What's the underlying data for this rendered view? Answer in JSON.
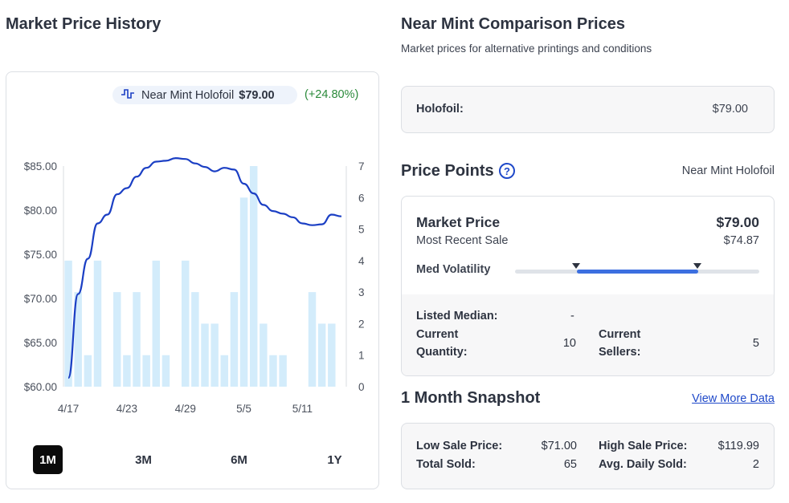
{
  "market_price_history": {
    "title": "Market Price History",
    "legend": {
      "name": "Near Mint Holofoil",
      "price": "$79.00",
      "change": "(+24.80%)"
    },
    "ranges": [
      "1M",
      "3M",
      "6M",
      "1Y"
    ],
    "active_range": "1M"
  },
  "chart_data": {
    "type": "bar+line",
    "categories": [
      "4/17",
      "4/18",
      "4/19",
      "4/20",
      "4/21",
      "4/22",
      "4/23",
      "4/24",
      "4/25",
      "4/26",
      "4/27",
      "4/28",
      "4/29",
      "4/30",
      "5/1",
      "5/2",
      "5/3",
      "5/4",
      "5/5",
      "5/6",
      "5/7",
      "5/8",
      "5/9",
      "5/10",
      "5/11",
      "5/12",
      "5/13",
      "5/14",
      "5/15"
    ],
    "x_tick_labels": [
      "4/17",
      "4/23",
      "4/29",
      "5/5",
      "5/11"
    ],
    "series": [
      {
        "name": "Near Mint Holofoil",
        "axis": "left",
        "kind": "line",
        "values": [
          61.0,
          70.5,
          74.5,
          78.5,
          79.5,
          81.8,
          82.5,
          83.8,
          84.8,
          85.5,
          85.6,
          85.9,
          85.8,
          85.3,
          84.9,
          84.4,
          84.8,
          84.6,
          83.0,
          81.9,
          80.6,
          79.9,
          79.6,
          79.2,
          78.5,
          78.3,
          78.4,
          79.5,
          79.3
        ]
      },
      {
        "name": "Quantity Sold",
        "axis": "right",
        "kind": "bar",
        "values": [
          4,
          3,
          1,
          4,
          0,
          3,
          1,
          3,
          1,
          4,
          1,
          0,
          4,
          3,
          2,
          2,
          1,
          3,
          6,
          7,
          2,
          1,
          1,
          0,
          0,
          3,
          2,
          2,
          0
        ]
      }
    ],
    "y_left": {
      "ticks": [
        "$60.00",
        "$65.00",
        "$70.00",
        "$75.00",
        "$80.00",
        "$85.00"
      ],
      "range": [
        60,
        85
      ]
    },
    "y_right": {
      "ticks": [
        "0",
        "1",
        "2",
        "3",
        "4",
        "5",
        "6",
        "7"
      ],
      "range": [
        0,
        7
      ]
    },
    "line_color": "#1b3fc4",
    "bar_color": "#d3ecfb"
  },
  "comparison": {
    "title": "Near Mint Comparison Prices",
    "subtitle": "Market prices for alternative printings and conditions",
    "holofoil_label": "Holofoil:",
    "holofoil_price": "$79.00"
  },
  "price_points": {
    "title": "Price Points",
    "help_glyph": "?",
    "variant": "Near Mint Holofoil",
    "market_price_label": "Market Price",
    "market_price": "$79.00",
    "recent_sale_label": "Most Recent Sale",
    "recent_sale": "$74.87",
    "volatility_label": "Med Volatility",
    "listed_median_label": "Listed Median:",
    "listed_median": "-",
    "current_quantity_label_1": "Current",
    "current_quantity_label_2": "Quantity:",
    "current_quantity": "10",
    "current_sellers_label_1": "Current",
    "current_sellers_label_2": "Sellers:",
    "current_sellers": "5"
  },
  "snapshot": {
    "title": "1 Month Snapshot",
    "link": "View More Data",
    "low_sale_label": "Low Sale Price:",
    "low_sale": "$71.00",
    "high_sale_label": "High Sale Price:",
    "high_sale": "$119.99",
    "total_sold_label": "Total Sold:",
    "total_sold": "65",
    "avg_daily_label": "Avg. Daily Sold:",
    "avg_daily": "2"
  },
  "colors": {
    "accent": "#1f49c9",
    "positive": "#2a8a3a",
    "active_button": "#0b0b0b"
  }
}
